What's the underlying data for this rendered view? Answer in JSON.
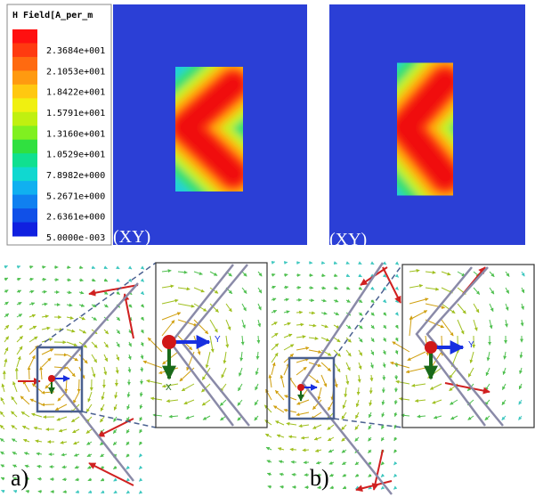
{
  "legend": {
    "title": "H Field[A_per_m",
    "values": [
      "2.3684e+001",
      "2.1053e+001",
      "1.8422e+001",
      "1.5791e+001",
      "1.3160e+001",
      "1.0529e+001",
      "7.8982e+000",
      "5.2671e+000",
      "2.6361e+000",
      "5.0000e-003"
    ]
  },
  "panels": [
    {
      "label": "(XY)"
    },
    {
      "label": "(XY)"
    }
  ],
  "subfigures": [
    {
      "label": "a)"
    },
    {
      "label": "b)"
    }
  ],
  "axis_labels": {
    "y": "Y",
    "x": "X"
  }
}
